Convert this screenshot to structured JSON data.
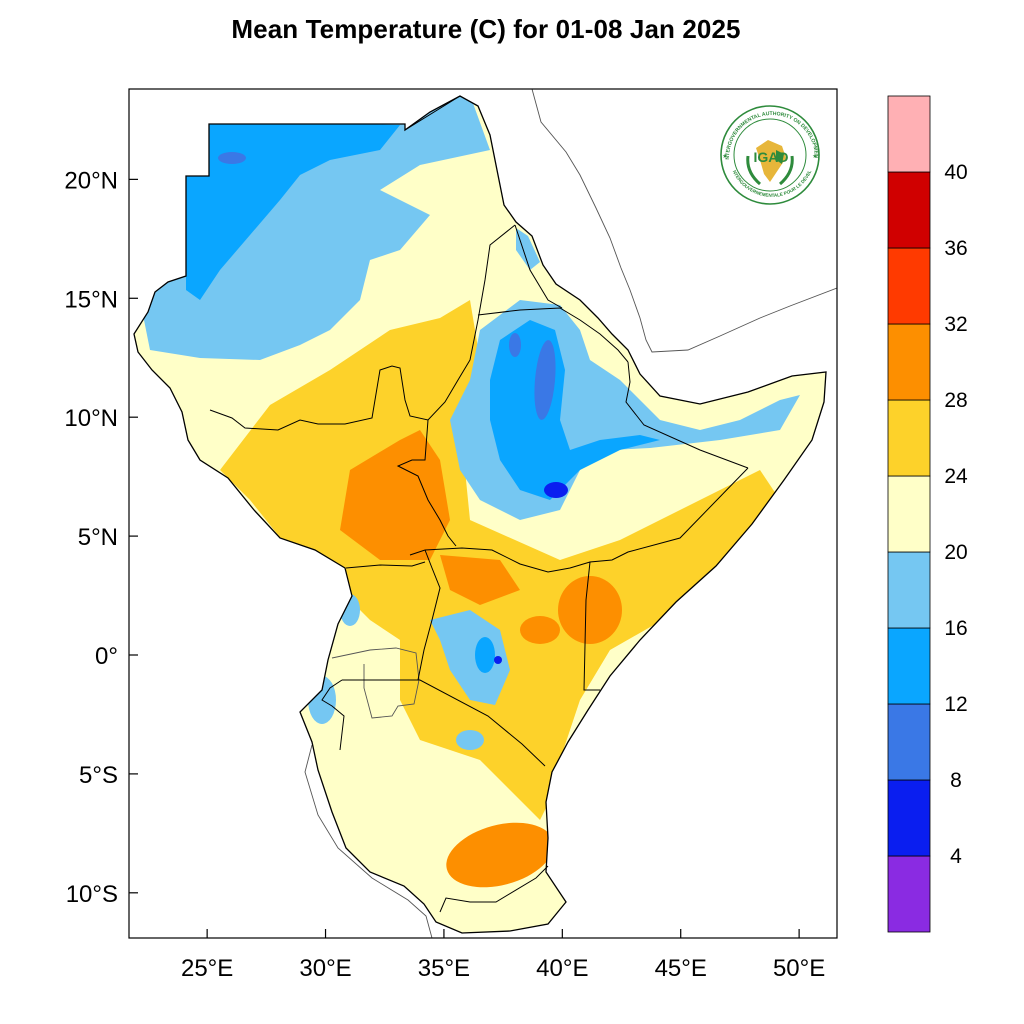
{
  "title": "Mean Temperature (C) for 01-08 Jan 2025",
  "map": {
    "projection": "equirectangular",
    "lon_range": [
      21.7,
      51.6
    ],
    "lat_range": [
      -11.9,
      23.8
    ],
    "x_ticks": [
      {
        "lon": 25,
        "label": "25°E"
      },
      {
        "lon": 30,
        "label": "30°E"
      },
      {
        "lon": 35,
        "label": "35°E"
      },
      {
        "lon": 40,
        "label": "40°E"
      },
      {
        "lon": 45,
        "label": "45°E"
      },
      {
        "lon": 50,
        "label": "50°E"
      }
    ],
    "y_ticks": [
      {
        "lat": 20,
        "label": "20°N"
      },
      {
        "lat": 15,
        "label": "15°N"
      },
      {
        "lat": 10,
        "label": "10°N"
      },
      {
        "lat": 5,
        "label": "5°N"
      },
      {
        "lat": 0,
        "label": "0°"
      },
      {
        "lat": -5,
        "label": "5°S"
      },
      {
        "lat": -10,
        "label": "10°S"
      }
    ]
  },
  "colorbar": {
    "bins": [
      {
        "color": "#8a2be2",
        "label": "4"
      },
      {
        "color": "#0a1ef0",
        "label": "8"
      },
      {
        "color": "#3a78e6",
        "label": "12"
      },
      {
        "color": "#0aa6ff",
        "label": "16"
      },
      {
        "color": "#75c7f2",
        "label": "20"
      },
      {
        "color": "#ffffc8",
        "label": "24"
      },
      {
        "color": "#fdd22a",
        "label": "28"
      },
      {
        "color": "#fd8f00",
        "label": "32"
      },
      {
        "color": "#ff3a00",
        "label": "36"
      },
      {
        "color": "#d00000",
        "label": "40"
      },
      {
        "color": "#ffb0b4",
        "label": ""
      }
    ]
  },
  "logo": {
    "name": "IGAD",
    "ring_text_top": "INTERGOVERNMENTAL AUTHORITY ON DEVELOPMENT",
    "ring_text_bottom": "AUTORITÉ INTERGOUVERNEMENTALE POUR LE DÉVELOPPEMENT",
    "colors": {
      "green": "#2e8b3c",
      "gold": "#e7b63a",
      "blue": "#1e6fb5"
    }
  }
}
